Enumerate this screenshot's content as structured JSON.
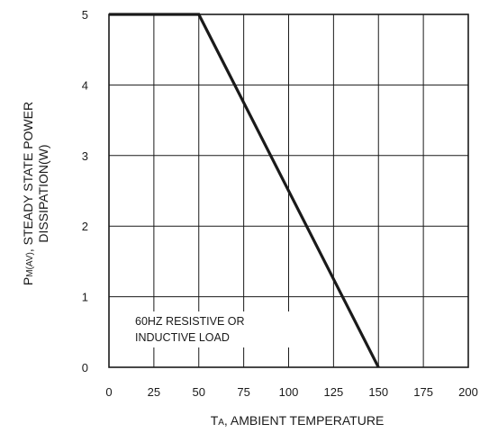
{
  "chart_data": {
    "type": "line",
    "title": "",
    "xlabel": {
      "main": "T",
      "sub": "A",
      "rest": ", AMBIENT TEMPERATURE"
    },
    "ylabel": {
      "line1_main": "P",
      "line1_sub": "M(AV)",
      "line1_rest": ", STEADY STATE POWER",
      "line2": "DISSIPATION(W)"
    },
    "annotation": [
      "60HZ RESISTIVE OR",
      "INDUCTIVE LOAD"
    ],
    "xlim": [
      0,
      200
    ],
    "ylim": [
      0,
      5
    ],
    "x_ticks": [
      0,
      25,
      50,
      75,
      100,
      125,
      150,
      175,
      200
    ],
    "y_ticks": [
      0,
      1,
      2,
      3,
      4,
      5
    ],
    "grid": true,
    "series": [
      {
        "x": [
          0,
          50,
          150
        ],
        "y": [
          5,
          5,
          0
        ]
      }
    ]
  }
}
